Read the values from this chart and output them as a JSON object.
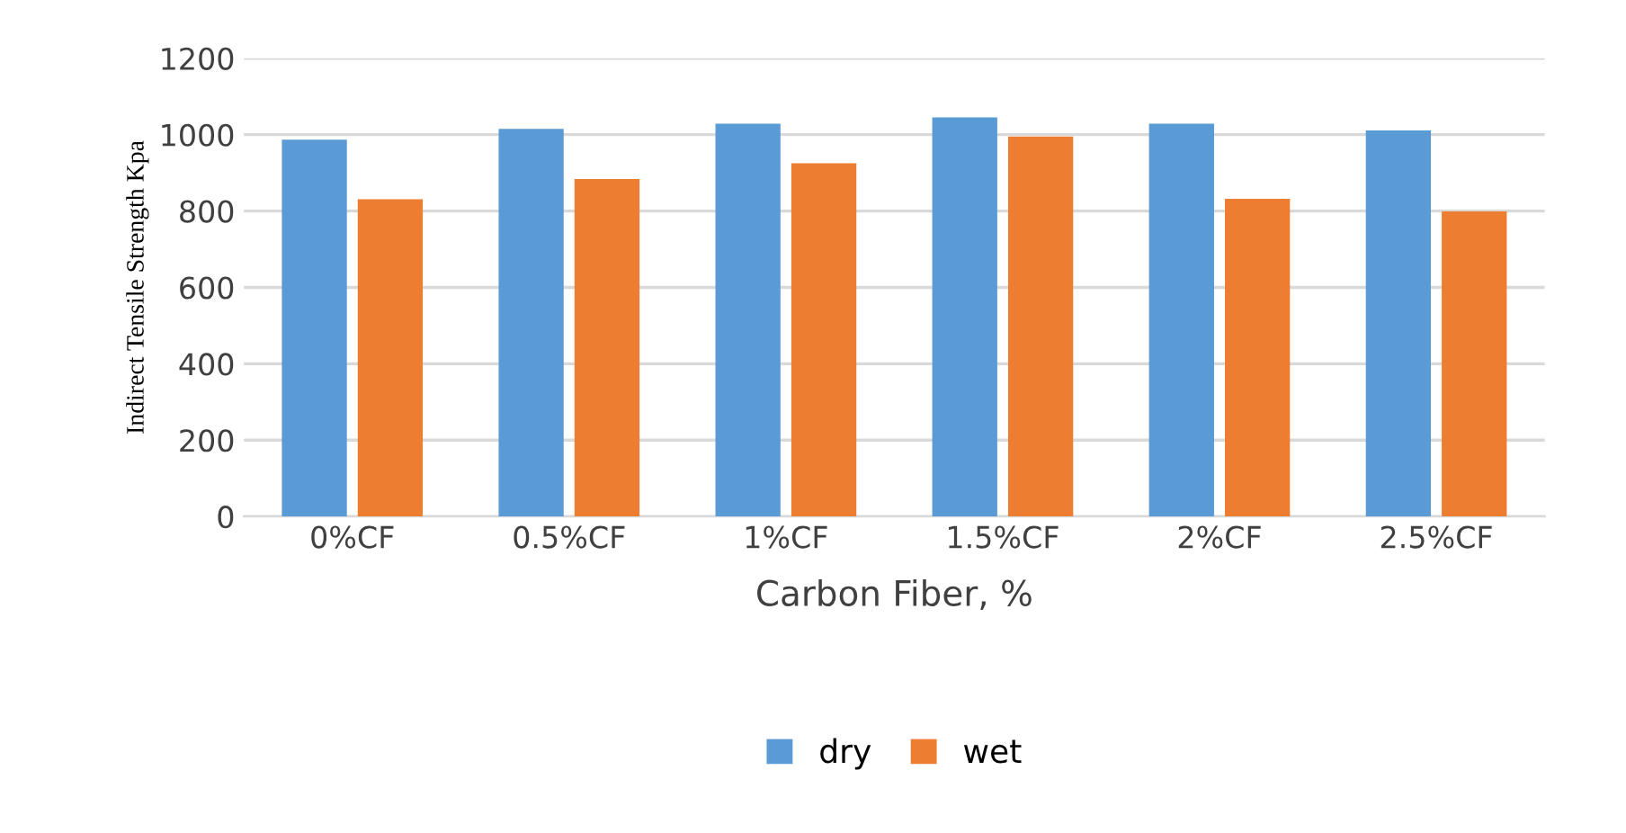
{
  "chart_data": {
    "type": "bar",
    "xlabel": "Carbon Fiber, %",
    "ylabel": "Indirect Tensile Strength Kpa",
    "categories": [
      "0%CF",
      "0.5%CF",
      "1%CF",
      "1.5%CF",
      "2%CF",
      "2.5%CF"
    ],
    "series": [
      {
        "name": "dry",
        "color": "#5b9bd5",
        "values": [
          987,
          1015,
          1029,
          1045,
          1029,
          1011
        ]
      },
      {
        "name": "wet",
        "color": "#ed7d31",
        "values": [
          831,
          884,
          925,
          995,
          832,
          799
        ]
      }
    ],
    "ylim": [
      0,
      1200
    ],
    "yticks": [
      0,
      200,
      400,
      600,
      800,
      1000,
      1200
    ],
    "grid": "y",
    "legend": "bottom"
  }
}
